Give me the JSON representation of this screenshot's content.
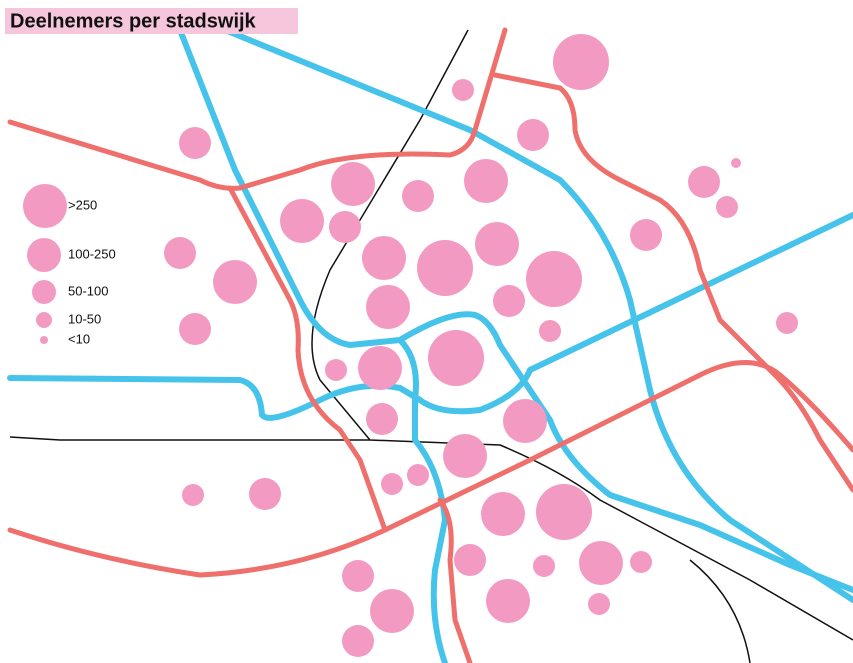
{
  "title": "Deelnemers per stadswijk",
  "legend": [
    ">250",
    "100-250",
    "50-100",
    "10-50",
    "<10"
  ]
}
